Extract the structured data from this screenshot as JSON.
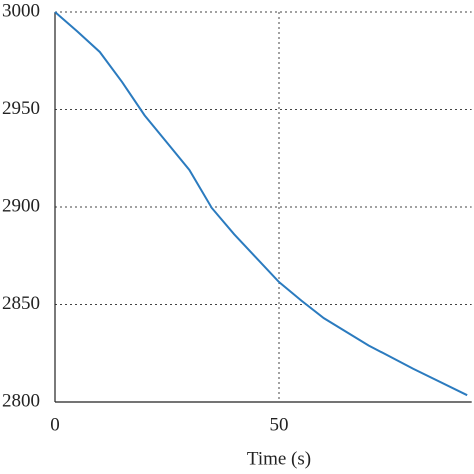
{
  "chart_data": {
    "type": "line",
    "x_label": "Time (s)",
    "x": [
      0,
      5,
      10,
      15,
      20,
      25,
      30,
      35,
      40,
      50,
      55,
      60,
      70,
      80,
      92
    ],
    "series": [
      {
        "color": "#2b7bbf",
        "values": [
          3000,
          2990,
          2979.5,
          2964,
          2947,
          2933,
          2919,
          2899.5,
          2886,
          2861.5,
          2852,
          2843,
          2829,
          2817,
          2803.5
        ]
      }
    ],
    "xlim": [
      0,
      93
    ],
    "xticks": [
      0,
      50
    ],
    "ylim": [
      2800,
      3000
    ],
    "yticks": [
      2800,
      2850,
      2900,
      2950,
      3000
    ],
    "grid": true
  }
}
